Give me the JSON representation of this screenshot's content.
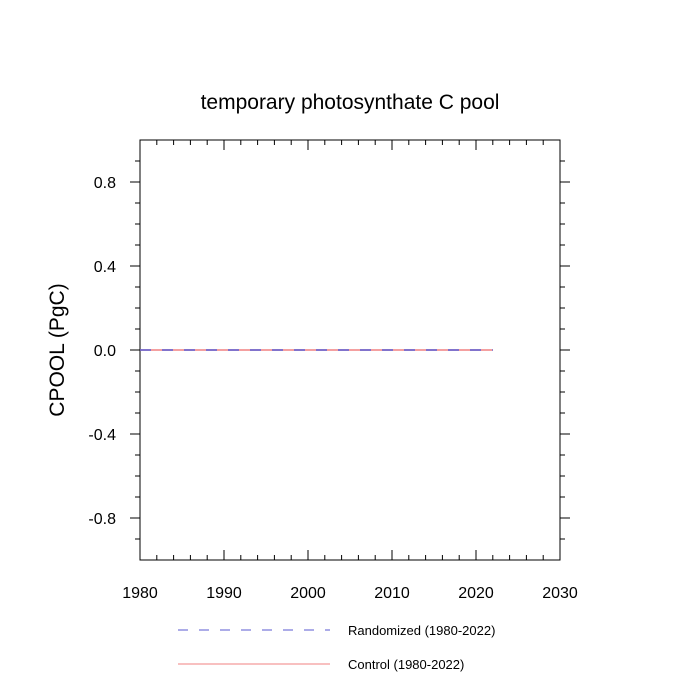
{
  "chart_data": {
    "type": "line",
    "title": "temporary photosynthate C pool",
    "xlabel": "",
    "ylabel": "CPOOL  (PgC)",
    "xlim": [
      1980,
      2030
    ],
    "ylim": [
      -1.0,
      1.0
    ],
    "x_ticks": [
      1980,
      1990,
      2000,
      2010,
      2020,
      2030
    ],
    "x_tick_labels": [
      "1980",
      "1990",
      "2000",
      "2010",
      "2020",
      "2030"
    ],
    "y_ticks": [
      0.8,
      0.4,
      0.0,
      -0.4,
      -0.8
    ],
    "y_tick_labels": [
      "0.8",
      "0.4",
      "0.0",
      "-0.4",
      "-0.8"
    ],
    "grid": false,
    "legend_position": "bottom",
    "series": [
      {
        "name": "Randomized (1980-2022)",
        "color": "#5a5ad0",
        "style": "dashed",
        "x": [
          1980,
          2022
        ],
        "values": [
          0.0,
          0.0
        ]
      },
      {
        "name": "Control (1980-2022)",
        "color": "#f08080",
        "style": "solid",
        "x": [
          1980,
          2022
        ],
        "values": [
          0.0,
          0.0
        ]
      }
    ]
  }
}
